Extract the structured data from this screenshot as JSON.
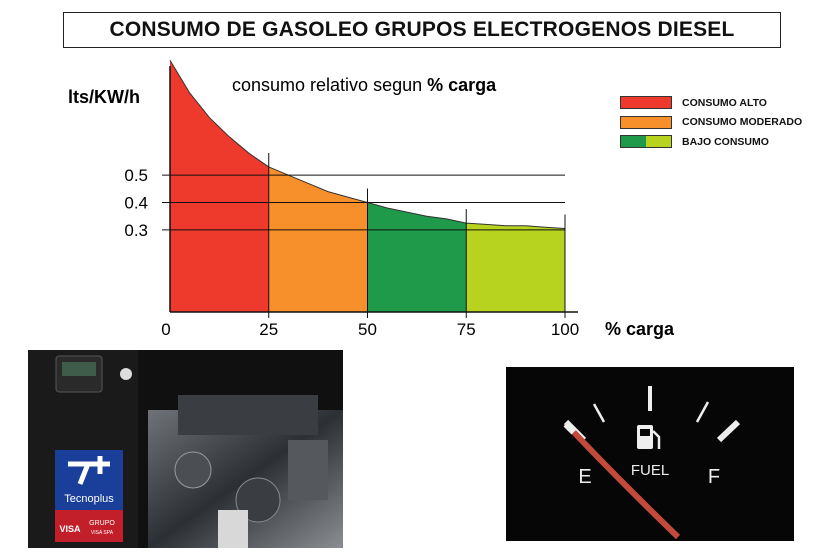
{
  "title": "CONSUMO DE GASOLEO GRUPOS ELECTROGENOS DIESEL",
  "chart_data": {
    "type": "area",
    "subtitle_prefix": "consumo relativo segun ",
    "subtitle_bold": "% carga",
    "xlabel": "% carga",
    "ylabel": "lts/KW/h",
    "x_ticks": [
      0,
      25,
      50,
      75,
      100
    ],
    "y_ticks": [
      0.5,
      0.4,
      0.3
    ],
    "xlim": [
      0,
      100
    ],
    "ylim": [
      0,
      0.95
    ],
    "curve": {
      "x": [
        0,
        5,
        10,
        15,
        20,
        25,
        30,
        35,
        40,
        45,
        50,
        55,
        60,
        65,
        70,
        75,
        80,
        85,
        90,
        95,
        100
      ],
      "y": [
        0.92,
        0.8,
        0.71,
        0.64,
        0.58,
        0.53,
        0.5,
        0.47,
        0.44,
        0.42,
        0.4,
        0.38,
        0.365,
        0.35,
        0.34,
        0.325,
        0.32,
        0.315,
        0.315,
        0.31,
        0.305
      ]
    },
    "bands": [
      {
        "from": 0,
        "to": 25,
        "color": "#ee3a2c"
      },
      {
        "from": 25,
        "to": 50,
        "color": "#f7902b"
      },
      {
        "from": 50,
        "to": 75,
        "color": "#1f9a4b"
      },
      {
        "from": 75,
        "to": 100,
        "color": "#b7d320"
      }
    ],
    "legend": [
      {
        "label": "CONSUMO ALTO",
        "colors": [
          "#ee3a2c"
        ]
      },
      {
        "label": "CONSUMO MODERADO",
        "colors": [
          "#f7902b"
        ]
      },
      {
        "label": "BAJO CONSUMO",
        "colors": [
          "#1f9a4b",
          "#b7d320"
        ]
      }
    ]
  },
  "photos": {
    "engine": {
      "brand_top": "Tecnoplus",
      "brand_left": "VISA",
      "brand_right_1": "GRUPO",
      "brand_right_2": "VISA SPA"
    },
    "gauge": {
      "label": "FUEL",
      "empty": "E",
      "full": "F"
    }
  }
}
